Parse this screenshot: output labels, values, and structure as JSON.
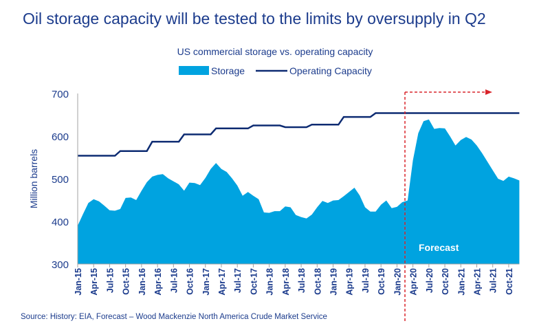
{
  "title": "Oil storage capacity will be tested to the limits by oversupply in Q2",
  "source": "Source: History: EIA, Forecast – Wood Mackenzie North America Crude Market Service",
  "colors": {
    "title": "#1b3b8c",
    "storage": "#00a3e0",
    "capacity": "#0d2b72",
    "forecast_marker": "#d9232a"
  },
  "chart_data": {
    "type": "area",
    "title": "US commercial storage vs. operating capacity",
    "xlabel": "",
    "ylabel": "Million barrels",
    "ylim": [
      300,
      700
    ],
    "yticks": [
      300,
      400,
      500,
      600,
      700
    ],
    "grid": false,
    "legend": "top-center",
    "x": [
      "Jan-15",
      "Feb-15",
      "Mar-15",
      "Apr-15",
      "May-15",
      "Jun-15",
      "Jul-15",
      "Aug-15",
      "Sep-15",
      "Oct-15",
      "Nov-15",
      "Dec-15",
      "Jan-16",
      "Feb-16",
      "Mar-16",
      "Apr-16",
      "May-16",
      "Jun-16",
      "Jul-16",
      "Aug-16",
      "Sep-16",
      "Oct-16",
      "Nov-16",
      "Dec-16",
      "Jan-17",
      "Feb-17",
      "Mar-17",
      "Apr-17",
      "May-17",
      "Jun-17",
      "Jul-17",
      "Aug-17",
      "Sep-17",
      "Oct-17",
      "Nov-17",
      "Dec-17",
      "Jan-18",
      "Feb-18",
      "Mar-18",
      "Apr-18",
      "May-18",
      "Jun-18",
      "Jul-18",
      "Aug-18",
      "Sep-18",
      "Oct-18",
      "Nov-18",
      "Dec-18",
      "Jan-19",
      "Feb-19",
      "Mar-19",
      "Apr-19",
      "May-19",
      "Jun-19",
      "Jul-19",
      "Aug-19",
      "Sep-19",
      "Oct-19",
      "Nov-19",
      "Dec-19",
      "Jan-20",
      "Feb-20",
      "Mar-20",
      "Apr-20",
      "May-20",
      "Jun-20",
      "Jul-20",
      "Aug-20",
      "Sep-20",
      "Oct-20",
      "Nov-20",
      "Dec-20",
      "Jan-21",
      "Feb-21",
      "Mar-21",
      "Apr-21",
      "May-21",
      "Jun-21",
      "Jul-21",
      "Aug-21",
      "Sep-21",
      "Oct-21",
      "Nov-21",
      "Dec-21"
    ],
    "xtick_labels": [
      "Jan-15",
      "Apr-15",
      "Jul-15",
      "Oct-15",
      "Jan-16",
      "Apr-16",
      "Jul-16",
      "Oct-16",
      "Jan-17",
      "Apr-17",
      "Jul-17",
      "Oct-17",
      "Jan-18",
      "Apr-18",
      "Jul-18",
      "Oct-18",
      "Jan-19",
      "Apr-19",
      "Jul-19",
      "Oct-19",
      "Jan-20",
      "Apr-20",
      "Jul-20",
      "Oct-20",
      "Jan-21",
      "Apr-21",
      "Jul-21",
      "Oct-21"
    ],
    "series": [
      {
        "name": "Storage",
        "type": "area",
        "values": [
          390,
          417,
          443,
          452,
          447,
          437,
          426,
          425,
          429,
          455,
          456,
          450,
          472,
          492,
          505,
          509,
          511,
          501,
          494,
          487,
          472,
          491,
          490,
          485,
          502,
          523,
          537,
          523,
          516,
          501,
          484,
          460,
          469,
          460,
          452,
          421,
          420,
          424,
          424,
          435,
          433,
          415,
          410,
          407,
          416,
          433,
          448,
          443,
          449,
          450,
          459,
          469,
          479,
          461,
          433,
          423,
          423,
          439,
          449,
          431,
          434,
          445,
          449,
          543,
          607,
          635,
          639,
          617,
          619,
          618,
          599,
          578,
          591,
          598,
          592,
          578,
          560,
          540,
          520,
          500,
          495,
          505,
          501,
          496
        ]
      },
      {
        "name": "Operating Capacity",
        "type": "line",
        "values": [
          554,
          554,
          554,
          554,
          554,
          554,
          554,
          554,
          565,
          565,
          565,
          565,
          565,
          565,
          587,
          587,
          587,
          587,
          587,
          587,
          604,
          604,
          604,
          604,
          604,
          604,
          618,
          618,
          618,
          618,
          618,
          618,
          618,
          625,
          625,
          625,
          625,
          625,
          625,
          621,
          621,
          621,
          621,
          621,
          627,
          627,
          627,
          627,
          627,
          627,
          645,
          645,
          645,
          645,
          645,
          645,
          654,
          654,
          654,
          654,
          654,
          654,
          654,
          654,
          654,
          654,
          654,
          654,
          654,
          654,
          654,
          654,
          654,
          654,
          654,
          654,
          654,
          654,
          654,
          654,
          654,
          654,
          654,
          654
        ]
      }
    ],
    "annotations": [
      {
        "text": "Forecast",
        "start": "Mar-20"
      }
    ]
  }
}
